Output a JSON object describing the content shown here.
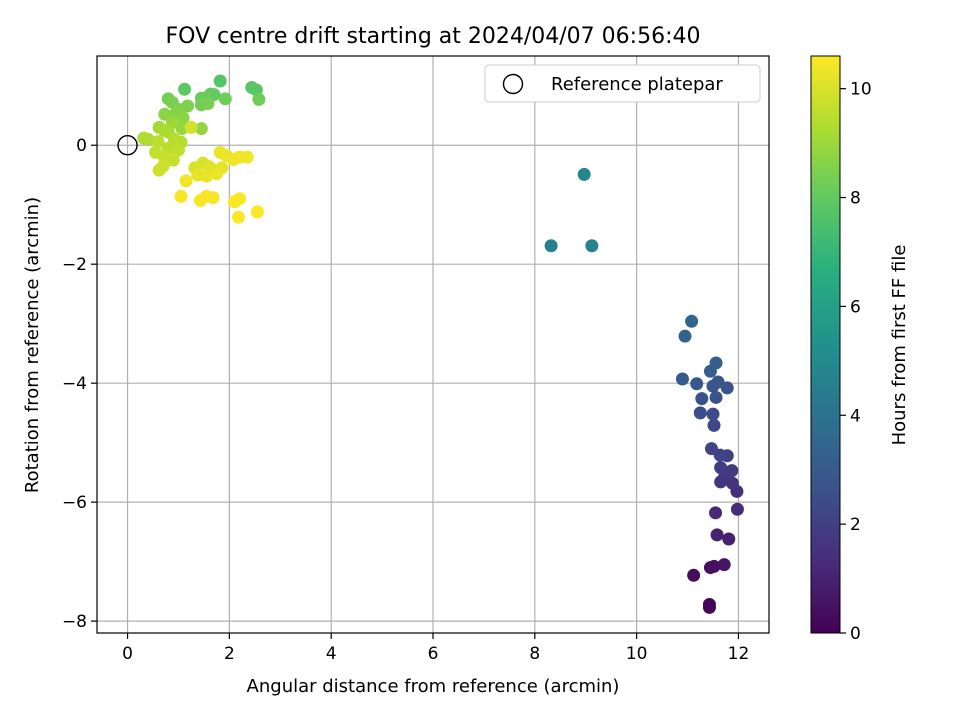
{
  "chart_data": {
    "type": "scatter",
    "title": "FOV centre drift starting at 2024/04/07 06:56:40",
    "xlabel": "Angular distance from reference (arcmin)",
    "ylabel": "Rotation from reference (arcmin)",
    "xlim": [
      -0.6,
      12.6
    ],
    "ylim": [
      -8.2,
      1.5
    ],
    "x_ticks": [
      0,
      2,
      4,
      6,
      8,
      10,
      12
    ],
    "y_ticks": [
      0,
      -2,
      -4,
      -6,
      -8
    ],
    "grid": true,
    "legend": {
      "placement": "top-right",
      "label": "Reference platepar"
    },
    "colorbar": {
      "label": "Hours from first FF file",
      "colormap": "viridis",
      "range": [
        0,
        10.6
      ],
      "ticks": [
        0,
        2,
        4,
        6,
        8,
        10
      ]
    },
    "reference_point": {
      "x": 0,
      "y": 0
    },
    "points": [
      {
        "x": 11.43,
        "y": -7.72,
        "c": 0.1
      },
      {
        "x": 11.43,
        "y": -7.77,
        "c": 0.15
      },
      {
        "x": 11.12,
        "y": -7.23,
        "c": 0.3
      },
      {
        "x": 11.45,
        "y": -7.1,
        "c": 0.4
      },
      {
        "x": 11.52,
        "y": -7.08,
        "c": 0.5
      },
      {
        "x": 11.72,
        "y": -7.05,
        "c": 0.6
      },
      {
        "x": 11.81,
        "y": -6.62,
        "c": 0.9
      },
      {
        "x": 11.58,
        "y": -6.55,
        "c": 1.0
      },
      {
        "x": 11.55,
        "y": -6.18,
        "c": 1.2
      },
      {
        "x": 11.98,
        "y": -6.12,
        "c": 1.3
      },
      {
        "x": 11.97,
        "y": -5.82,
        "c": 1.4
      },
      {
        "x": 11.88,
        "y": -5.68,
        "c": 1.5
      },
      {
        "x": 11.65,
        "y": -5.66,
        "c": 1.6
      },
      {
        "x": 11.73,
        "y": -5.57,
        "c": 1.7
      },
      {
        "x": 11.87,
        "y": -5.47,
        "c": 1.8
      },
      {
        "x": 11.65,
        "y": -5.42,
        "c": 1.9
      },
      {
        "x": 11.78,
        "y": -5.22,
        "c": 2.0
      },
      {
        "x": 11.64,
        "y": -5.21,
        "c": 2.1
      },
      {
        "x": 11.47,
        "y": -5.1,
        "c": 2.2
      },
      {
        "x": 11.52,
        "y": -4.71,
        "c": 2.3
      },
      {
        "x": 11.5,
        "y": -4.52,
        "c": 2.4
      },
      {
        "x": 11.25,
        "y": -4.5,
        "c": 2.5
      },
      {
        "x": 11.28,
        "y": -4.26,
        "c": 2.6
      },
      {
        "x": 11.56,
        "y": -4.24,
        "c": 2.7
      },
      {
        "x": 11.78,
        "y": -4.08,
        "c": 2.75
      },
      {
        "x": 11.5,
        "y": -4.05,
        "c": 2.8
      },
      {
        "x": 11.6,
        "y": -3.98,
        "c": 2.85
      },
      {
        "x": 11.18,
        "y": -4.01,
        "c": 2.9
      },
      {
        "x": 10.9,
        "y": -3.93,
        "c": 3.0
      },
      {
        "x": 11.45,
        "y": -3.8,
        "c": 3.1
      },
      {
        "x": 11.56,
        "y": -3.66,
        "c": 3.2
      },
      {
        "x": 10.95,
        "y": -3.21,
        "c": 3.3
      },
      {
        "x": 11.08,
        "y": -2.96,
        "c": 3.4
      },
      {
        "x": 8.32,
        "y": -1.69,
        "c": 4.6
      },
      {
        "x": 9.12,
        "y": -1.69,
        "c": 4.7
      },
      {
        "x": 8.97,
        "y": -0.49,
        "c": 4.8
      },
      {
        "x": 1.82,
        "y": 1.08,
        "c": 7.7
      },
      {
        "x": 2.44,
        "y": 0.97,
        "c": 7.8
      },
      {
        "x": 2.53,
        "y": 0.93,
        "c": 7.8
      },
      {
        "x": 1.12,
        "y": 0.94,
        "c": 7.9
      },
      {
        "x": 1.63,
        "y": 0.86,
        "c": 8.0
      },
      {
        "x": 1.7,
        "y": 0.85,
        "c": 8.0
      },
      {
        "x": 1.55,
        "y": 0.8,
        "c": 8.1
      },
      {
        "x": 1.45,
        "y": 0.79,
        "c": 8.1
      },
      {
        "x": 1.92,
        "y": 0.78,
        "c": 8.2
      },
      {
        "x": 2.58,
        "y": 0.77,
        "c": 8.2
      },
      {
        "x": 0.8,
        "y": 0.78,
        "c": 8.3
      },
      {
        "x": 1.45,
        "y": 0.68,
        "c": 8.3
      },
      {
        "x": 1.58,
        "y": 0.7,
        "c": 8.4
      },
      {
        "x": 0.88,
        "y": 0.72,
        "c": 8.4
      },
      {
        "x": 1.18,
        "y": 0.66,
        "c": 8.5
      },
      {
        "x": 1.02,
        "y": 0.6,
        "c": 8.5
      },
      {
        "x": 0.96,
        "y": 0.55,
        "c": 8.6
      },
      {
        "x": 0.73,
        "y": 0.52,
        "c": 8.7
      },
      {
        "x": 1.09,
        "y": 0.46,
        "c": 8.7
      },
      {
        "x": 1.45,
        "y": 0.28,
        "c": 8.8
      },
      {
        "x": 1.07,
        "y": 0.28,
        "c": 8.9
      },
      {
        "x": 0.88,
        "y": 0.38,
        "c": 9.0
      },
      {
        "x": 0.62,
        "y": 0.3,
        "c": 9.1
      },
      {
        "x": 0.8,
        "y": 0.22,
        "c": 9.2
      },
      {
        "x": 0.72,
        "y": 0.25,
        "c": 9.2
      },
      {
        "x": 0.32,
        "y": 0.12,
        "c": 9.3
      },
      {
        "x": 0.4,
        "y": 0.1,
        "c": 9.3
      },
      {
        "x": 0.92,
        "y": 0.1,
        "c": 9.4
      },
      {
        "x": 1.05,
        "y": 0.05,
        "c": 9.4
      },
      {
        "x": 0.6,
        "y": 0.06,
        "c": 9.5
      },
      {
        "x": 0.8,
        "y": -0.05,
        "c": 9.5
      },
      {
        "x": 1.0,
        "y": -0.08,
        "c": 9.6
      },
      {
        "x": 0.55,
        "y": -0.12,
        "c": 9.6
      },
      {
        "x": 0.72,
        "y": -0.2,
        "c": 9.7
      },
      {
        "x": 0.9,
        "y": -0.25,
        "c": 9.7
      },
      {
        "x": 0.7,
        "y": -0.35,
        "c": 9.8
      },
      {
        "x": 0.62,
        "y": -0.42,
        "c": 9.8
      },
      {
        "x": 1.25,
        "y": 0.3,
        "c": 9.9
      },
      {
        "x": 1.32,
        "y": -0.38,
        "c": 10.0
      },
      {
        "x": 1.48,
        "y": -0.3,
        "c": 10.0
      },
      {
        "x": 1.6,
        "y": -0.36,
        "c": 10.1
      },
      {
        "x": 1.72,
        "y": -0.42,
        "c": 10.1
      },
      {
        "x": 1.85,
        "y": -0.38,
        "c": 10.2
      },
      {
        "x": 1.38,
        "y": -0.5,
        "c": 10.2
      },
      {
        "x": 1.55,
        "y": -0.52,
        "c": 10.2
      },
      {
        "x": 1.75,
        "y": -0.48,
        "c": 10.3
      },
      {
        "x": 1.82,
        "y": -0.12,
        "c": 10.3
      },
      {
        "x": 1.95,
        "y": -0.18,
        "c": 10.3
      },
      {
        "x": 2.08,
        "y": -0.24,
        "c": 10.4
      },
      {
        "x": 2.2,
        "y": -0.2,
        "c": 10.4
      },
      {
        "x": 2.35,
        "y": -0.2,
        "c": 10.4
      },
      {
        "x": 1.15,
        "y": -0.6,
        "c": 10.4
      },
      {
        "x": 1.05,
        "y": -0.86,
        "c": 10.5
      },
      {
        "x": 1.43,
        "y": -0.93,
        "c": 10.5
      },
      {
        "x": 1.55,
        "y": -0.86,
        "c": 10.5
      },
      {
        "x": 1.68,
        "y": -0.88,
        "c": 10.5
      },
      {
        "x": 2.1,
        "y": -0.95,
        "c": 10.55
      },
      {
        "x": 2.2,
        "y": -0.9,
        "c": 10.55
      },
      {
        "x": 2.55,
        "y": -1.12,
        "c": 10.6
      },
      {
        "x": 2.18,
        "y": -1.21,
        "c": 10.6
      }
    ]
  }
}
